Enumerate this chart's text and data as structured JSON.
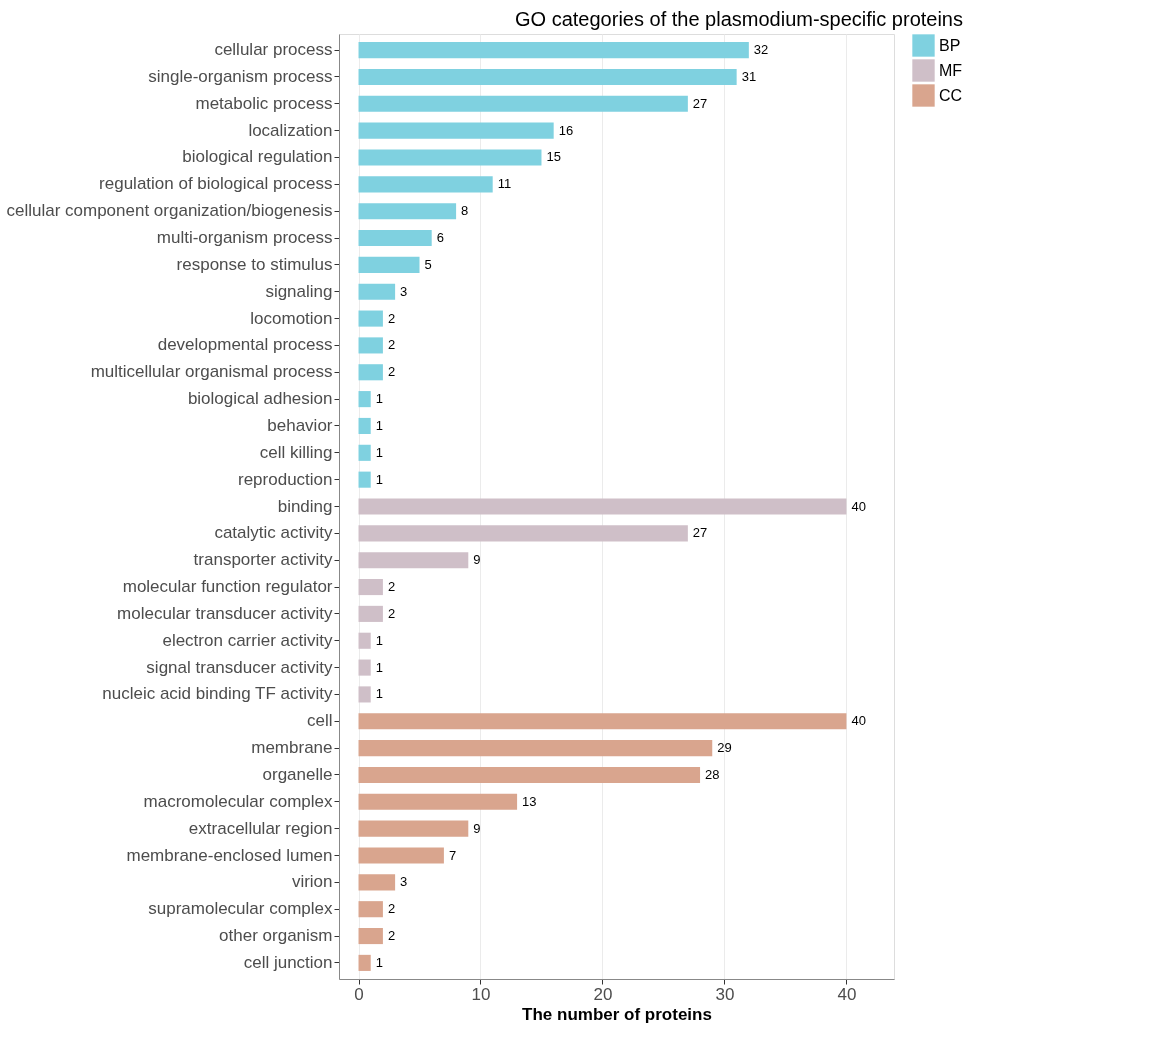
{
  "chart_data": {
    "type": "bar",
    "orientation": "horizontal",
    "title": "GO categories of the plasmodium-specific proteins",
    "xlabel": "The number of proteins",
    "categories": [
      "cellular process",
      "single-organism process",
      "metabolic process",
      "localization",
      "biological regulation",
      "regulation of biological process",
      "cellular component organization/biogenesis",
      "multi-organism process",
      "response to stimulus",
      "signaling",
      "locomotion",
      "developmental process",
      "multicellular organismal process",
      "biological adhesion",
      "behavior",
      "cell killing",
      "reproduction",
      "binding",
      "catalytic activity",
      "transporter activity",
      "molecular function regulator",
      "molecular transducer activity",
      "electron carrier activity",
      "signal transducer activity",
      "nucleic acid binding TF activity",
      "cell",
      "membrane",
      "organelle",
      "macromolecular complex",
      "extracellular region",
      "membrane-enclosed lumen",
      "virion",
      "supramolecular complex",
      "other organism",
      "cell junction"
    ],
    "series": [
      {
        "name": "BP",
        "color": "#7fd1e0",
        "values": [
          32,
          31,
          27,
          16,
          15,
          11,
          8,
          6,
          5,
          3,
          2,
          2,
          2,
          1,
          1,
          1,
          1,
          null,
          null,
          null,
          null,
          null,
          null,
          null,
          null,
          null,
          null,
          null,
          null,
          null,
          null,
          null,
          null,
          null,
          null
        ]
      },
      {
        "name": "MF",
        "color": "#cfbfc8",
        "values": [
          null,
          null,
          null,
          null,
          null,
          null,
          null,
          null,
          null,
          null,
          null,
          null,
          null,
          null,
          null,
          null,
          null,
          40,
          27,
          9,
          2,
          2,
          1,
          1,
          1,
          null,
          null,
          null,
          null,
          null,
          null,
          null,
          null,
          null,
          null
        ]
      },
      {
        "name": "CC",
        "color": "#d9a58e",
        "values": [
          null,
          null,
          null,
          null,
          null,
          null,
          null,
          null,
          null,
          null,
          null,
          null,
          null,
          null,
          null,
          null,
          null,
          null,
          null,
          null,
          null,
          null,
          null,
          null,
          null,
          40,
          29,
          28,
          13,
          9,
          7,
          3,
          2,
          2,
          1
        ]
      }
    ],
    "xlim": [
      -1.6,
      43.9
    ],
    "xticks": [
      0,
      10,
      20,
      30,
      40
    ],
    "grid": "x",
    "legend": "right",
    "data_labels": true
  }
}
